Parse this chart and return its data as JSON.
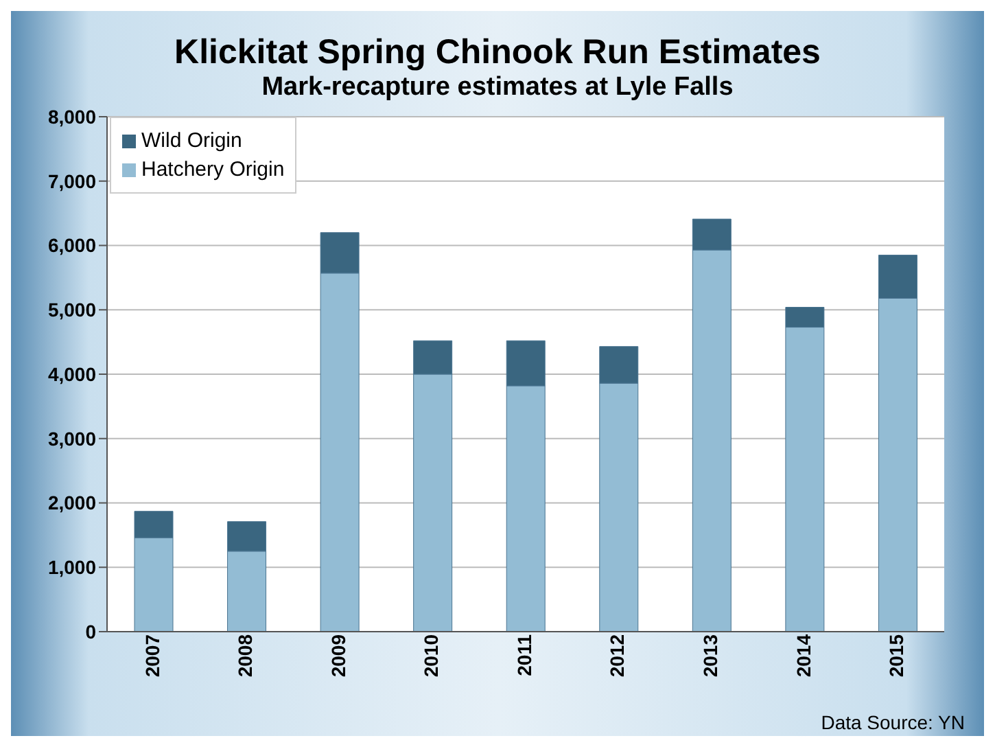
{
  "chart_data": {
    "type": "bar",
    "title": "Klickitat Spring Chinook Run Estimates",
    "subtitle": "Mark-recapture estimates at Lyle Falls",
    "categories": [
      "2007",
      "2008",
      "2009",
      "2010",
      "2011",
      "2012",
      "2013",
      "2014",
      "2015"
    ],
    "series": [
      {
        "name": "Hatchery Origin",
        "color": "#93bcd4",
        "values": [
          1460,
          1250,
          5570,
          4000,
          3820,
          3860,
          5930,
          4730,
          5180
        ]
      },
      {
        "name": "Wild Origin",
        "color": "#3a6680",
        "values": [
          410,
          460,
          630,
          520,
          700,
          570,
          480,
          310,
          670
        ]
      }
    ],
    "stacked": true,
    "ylim": [
      0,
      8000
    ],
    "yticks": [
      {
        "value": 0,
        "label": "0"
      },
      {
        "value": 1000,
        "label": "1,000"
      },
      {
        "value": 2000,
        "label": "2,000"
      },
      {
        "value": 3000,
        "label": "3,000"
      },
      {
        "value": 4000,
        "label": "4,000"
      },
      {
        "value": 5000,
        "label": "5,000"
      },
      {
        "value": 6000,
        "label": "6,000"
      },
      {
        "value": 7000,
        "label": "7,000"
      },
      {
        "value": 8000,
        "label": "8,000"
      }
    ],
    "grid": "y",
    "legend": "top left",
    "annotations": [
      "Data Source: YN"
    ]
  }
}
